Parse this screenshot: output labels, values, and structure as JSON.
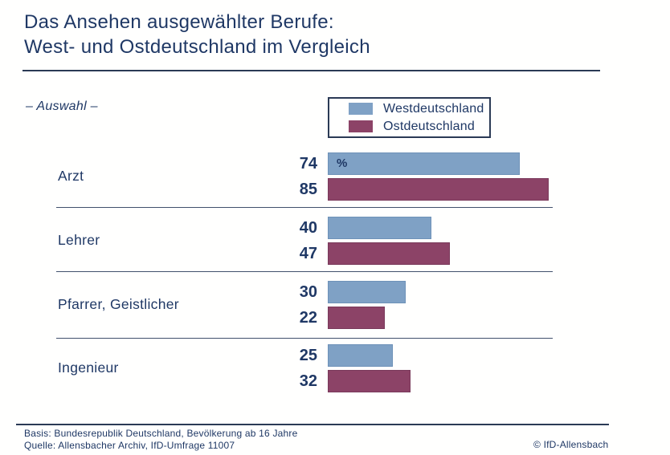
{
  "title": {
    "line1": "Das Ansehen ausgewählter Berufe:",
    "line2": "West- und Ostdeutschland im Vergleich"
  },
  "subtitle": "– Auswahl –",
  "legend": {
    "items": [
      {
        "label": "Westdeutschland",
        "color": "#7FA1C5"
      },
      {
        "label": "Ostdeutschland",
        "color": "#8C4367"
      }
    ]
  },
  "chart_data": {
    "type": "bar",
    "orientation": "horizontal",
    "title": "Das Ansehen ausgewählter Berufe: West- und Ostdeutschland im Vergleich",
    "categories": [
      "Arzt",
      "Lehrer",
      "Pfarrer, Geistlicher",
      "Ingenieur"
    ],
    "series": [
      {
        "name": "Westdeutschland",
        "color": "#7FA1C5",
        "values": [
          74,
          40,
          30,
          25
        ]
      },
      {
        "name": "Ostdeutschland",
        "color": "#8C4367",
        "values": [
          85,
          47,
          22,
          32
        ]
      }
    ],
    "value_unit": "%",
    "xlim": [
      0,
      100
    ],
    "grid": false,
    "legend_position": "top-center",
    "value_labels": "left-of-bar"
  },
  "footer": {
    "basis": "Basis: Bundesrepublik Deutschland, Bevölkerung ab 16 Jahre",
    "quelle": "Quelle: Allensbacher Archiv, IfD-Umfrage 11007",
    "copyright": "© IfD-Allensbach"
  },
  "colors": {
    "west": "#7FA1C5",
    "east": "#8C4367",
    "text": "#1F3865",
    "line": "#2B3A55"
  }
}
